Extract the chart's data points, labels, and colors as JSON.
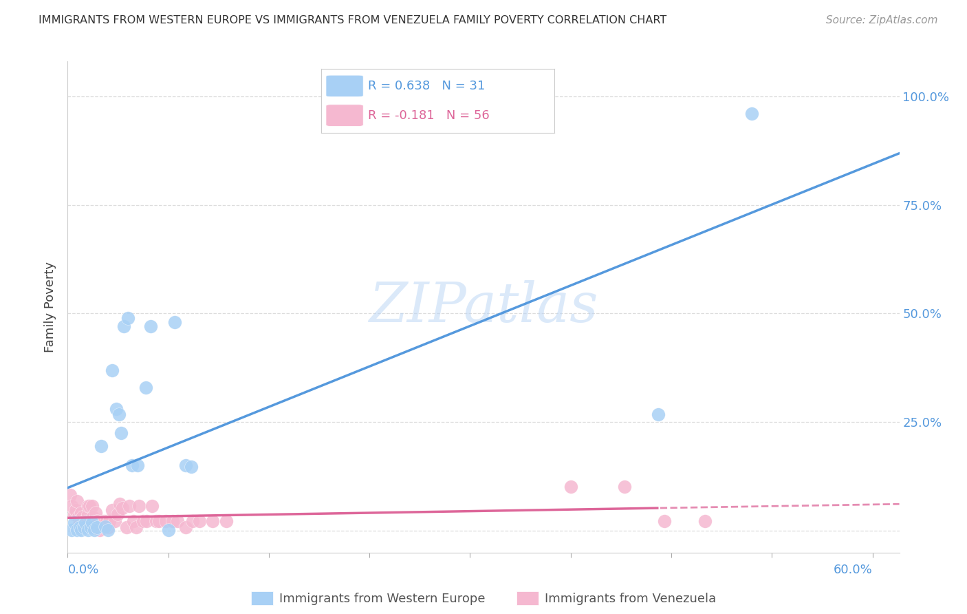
{
  "title": "IMMIGRANTS FROM WESTERN EUROPE VS IMMIGRANTS FROM VENEZUELA FAMILY POVERTY CORRELATION CHART",
  "source": "Source: ZipAtlas.com",
  "ylabel": "Family Poverty",
  "xlim": [
    0.0,
    0.62
  ],
  "ylim": [
    -0.05,
    1.08
  ],
  "yticks": [
    0.0,
    0.25,
    0.5,
    0.75,
    1.0
  ],
  "ytick_labels": [
    "",
    "25.0%",
    "50.0%",
    "75.0%",
    "100.0%"
  ],
  "watermark": "ZIPatlas",
  "blue_R": "0.638",
  "blue_N": "31",
  "pink_R": "-0.181",
  "pink_N": "56",
  "blue_color": "#A8D0F5",
  "pink_color": "#F5B8D0",
  "blue_line_color": "#5599DD",
  "pink_line_color": "#DD6699",
  "blue_scatter_x": [
    0.003,
    0.005,
    0.007,
    0.009,
    0.01,
    0.012,
    0.013,
    0.015,
    0.017,
    0.018,
    0.02,
    0.022,
    0.025,
    0.028,
    0.03,
    0.033,
    0.036,
    0.038,
    0.04,
    0.042,
    0.045,
    0.048,
    0.052,
    0.058,
    0.062,
    0.075,
    0.08,
    0.088,
    0.092,
    0.44,
    0.51
  ],
  "blue_scatter_y": [
    0.002,
    0.02,
    0.002,
    0.008,
    0.002,
    0.008,
    0.02,
    0.002,
    0.008,
    0.02,
    0.002,
    0.008,
    0.195,
    0.01,
    0.002,
    0.37,
    0.28,
    0.268,
    0.225,
    0.47,
    0.49,
    0.15,
    0.15,
    0.33,
    0.47,
    0.002,
    0.48,
    0.15,
    0.148,
    0.268,
    0.96
  ],
  "pink_scatter_x": [
    0.002,
    0.003,
    0.005,
    0.006,
    0.007,
    0.008,
    0.008,
    0.01,
    0.01,
    0.011,
    0.012,
    0.013,
    0.014,
    0.015,
    0.015,
    0.016,
    0.017,
    0.018,
    0.019,
    0.02,
    0.021,
    0.022,
    0.024,
    0.024,
    0.026,
    0.027,
    0.029,
    0.03,
    0.031,
    0.033,
    0.035,
    0.037,
    0.039,
    0.041,
    0.044,
    0.046,
    0.049,
    0.051,
    0.053,
    0.056,
    0.059,
    0.063,
    0.066,
    0.068,
    0.073,
    0.078,
    0.082,
    0.088,
    0.093,
    0.098,
    0.108,
    0.118,
    0.375,
    0.415,
    0.445,
    0.475
  ],
  "pink_scatter_y": [
    0.082,
    0.058,
    0.038,
    0.048,
    0.068,
    0.032,
    0.012,
    0.042,
    0.012,
    0.032,
    0.022,
    0.022,
    0.022,
    0.038,
    0.058,
    0.058,
    0.012,
    0.058,
    0.032,
    0.022,
    0.042,
    0.022,
    0.002,
    0.012,
    0.012,
    0.022,
    0.022,
    0.008,
    0.022,
    0.048,
    0.022,
    0.038,
    0.062,
    0.052,
    0.008,
    0.058,
    0.022,
    0.008,
    0.058,
    0.022,
    0.022,
    0.058,
    0.022,
    0.022,
    0.022,
    0.022,
    0.022,
    0.008,
    0.022,
    0.022,
    0.022,
    0.022,
    0.102,
    0.102,
    0.022,
    0.022
  ],
  "legend_blue_label": "Immigrants from Western Europe",
  "legend_pink_label": "Immigrants from Venezuela",
  "background_color": "#FFFFFF",
  "grid_color": "#DDDDDD"
}
